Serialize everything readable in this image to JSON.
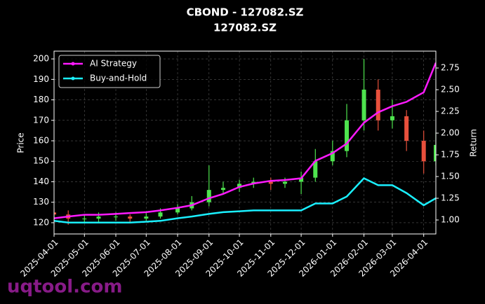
{
  "chart_data": {
    "type": "candlestick",
    "title": "CBOND - 127082.SZ",
    "subtitle": "127082.SZ",
    "y_label": "Price",
    "y2_label": "Return",
    "watermark": "uqtool.com",
    "x": [
      "2025-04-01",
      "2025-04-15",
      "2025-05-01",
      "2025-05-15",
      "2025-06-01",
      "2025-06-15",
      "2025-07-01",
      "2025-07-15",
      "2025-08-01",
      "2025-08-15",
      "2025-09-01",
      "2025-09-15",
      "2025-10-01",
      "2025-10-15",
      "2025-11-01",
      "2025-11-15",
      "2025-12-01",
      "2025-12-15",
      "2026-01-01",
      "2026-01-15",
      "2026-02-01",
      "2026-02-15",
      "2026-03-01",
      "2026-03-15",
      "2026-04-01",
      "2026-04-13"
    ],
    "open": [
      125,
      124,
      122,
      122,
      123,
      123,
      122,
      123,
      125,
      127,
      130,
      136,
      137,
      139,
      140,
      139,
      140,
      142,
      150,
      155,
      170,
      185,
      170,
      172,
      160,
      150
    ],
    "high": [
      127,
      126,
      124,
      125,
      125,
      124,
      125,
      127,
      129,
      133,
      148,
      140,
      141,
      142,
      142,
      142,
      145,
      156,
      160,
      178,
      200,
      190,
      180,
      175,
      165,
      164
    ],
    "low": [
      121,
      119,
      120,
      120,
      121,
      120,
      121,
      122,
      124,
      126,
      128,
      134,
      135,
      137,
      136,
      137,
      134,
      140,
      148,
      152,
      165,
      165,
      166,
      155,
      144,
      148
    ],
    "close": [
      124,
      122,
      122,
      123,
      123,
      122,
      123,
      125,
      127,
      130,
      136,
      137,
      139,
      140,
      139,
      140,
      142,
      150,
      155,
      170,
      185,
      170,
      172,
      160,
      150,
      158
    ],
    "up_color": "#4ee44e",
    "down_color": "#e8503c",
    "series": [
      {
        "name": "AI Strategy",
        "color": "#ff1aff",
        "axis": "y2",
        "values": [
          1.02,
          1.04,
          1.06,
          1.06,
          1.07,
          1.08,
          1.09,
          1.11,
          1.14,
          1.17,
          1.25,
          1.3,
          1.38,
          1.42,
          1.45,
          1.46,
          1.48,
          1.68,
          1.77,
          1.88,
          2.12,
          2.24,
          2.31,
          2.36,
          2.47,
          2.81
        ]
      },
      {
        "name": "Buy-and-Hold",
        "color": "#1af0ff",
        "axis": "y2",
        "values": [
          0.99,
          0.97,
          0.97,
          0.97,
          0.97,
          0.97,
          0.98,
          0.99,
          1.02,
          1.04,
          1.07,
          1.09,
          1.1,
          1.11,
          1.11,
          1.11,
          1.11,
          1.19,
          1.19,
          1.27,
          1.48,
          1.4,
          1.4,
          1.31,
          1.17,
          1.25
        ]
      }
    ],
    "xlim": [
      "2025-04-01",
      "2026-04-13"
    ],
    "xticks": [
      "2025-04-01",
      "2025-05-01",
      "2025-06-01",
      "2025-07-01",
      "2025-08-01",
      "2025-09-01",
      "2025-10-01",
      "2025-11-01",
      "2025-12-01",
      "2026-01-01",
      "2026-02-01",
      "2026-03-01",
      "2026-04-01"
    ],
    "ylim": [
      114.5,
      203.8
    ],
    "yticks": [
      120,
      130,
      140,
      150,
      160,
      170,
      180,
      190,
      200
    ],
    "y2lim": [
      0.839,
      2.944
    ],
    "y2ticks": [
      {
        "value": 1,
        "label": "1.00"
      },
      {
        "value": 1.25,
        "label": "1.25"
      },
      {
        "value": 1.5,
        "label": "1.50"
      },
      {
        "value": 1.75,
        "label": "1.75"
      },
      {
        "value": 2,
        "label": "2.00"
      },
      {
        "value": 2.25,
        "label": "2.25"
      },
      {
        "value": 2.5,
        "label": "2.50"
      },
      {
        "value": 2.75,
        "label": "2.75"
      }
    ],
    "grid": true,
    "legend": "upper left"
  }
}
